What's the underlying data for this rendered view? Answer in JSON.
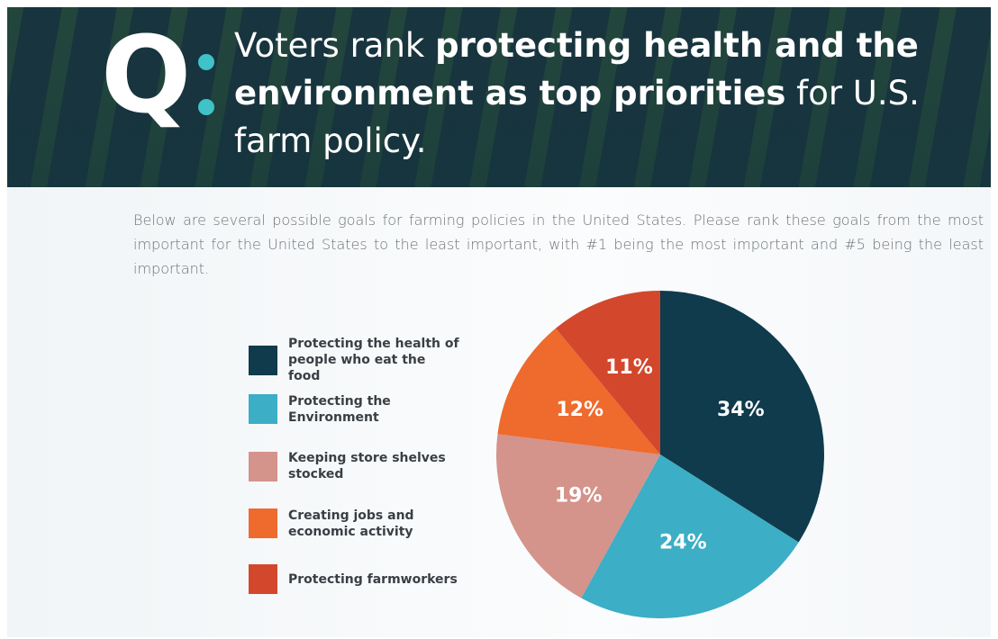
{
  "header": {
    "q": "Q",
    "title_parts": [
      {
        "text": "Voters rank ",
        "bold": false
      },
      {
        "text": "protecting health and the environment as top priorities",
        "bold": true
      },
      {
        "text": " for U.S. farm policy.",
        "bold": false
      }
    ]
  },
  "description": "Below are several possible goals for farming policies in the United States. Please rank these goals from the most important for the United States to the least important, with #1 being the most important and #5 being the least important.",
  "chart_data": {
    "type": "pie",
    "categories": [
      "Protecting the health of people who eat the food",
      "Protecting the Environment",
      "Keeping store shelves stocked",
      "Creating jobs and economic activity",
      "Protecting farmworkers"
    ],
    "values": [
      34,
      24,
      19,
      12,
      11
    ],
    "value_labels": [
      "34%",
      "24%",
      "19%",
      "12%",
      "11%"
    ],
    "colors": [
      "#0f3b4c",
      "#3caec5",
      "#d4938b",
      "#ee6a2d",
      "#d3472d"
    ]
  }
}
